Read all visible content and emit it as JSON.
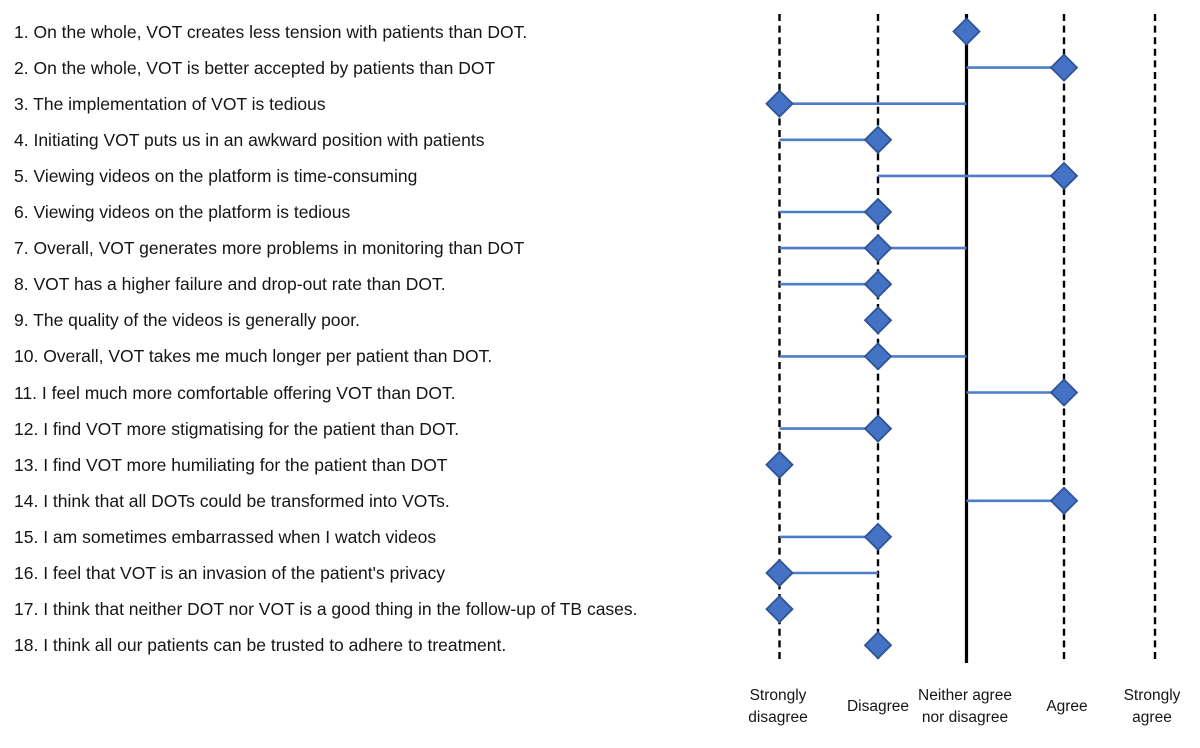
{
  "chart_data": {
    "type": "scatter",
    "marker": "diamond",
    "title": "",
    "scale": [
      "Strongly disagree",
      "Disagree",
      "Neither agree nor disagree",
      "Agree",
      "Strongly agree"
    ],
    "scale_values": [
      1,
      2,
      3,
      4,
      5
    ],
    "xlim": [
      1,
      5
    ],
    "grid": "dashed vertical lines at each scale point; solid line at neutral (3)",
    "legend": "none",
    "rows": [
      {
        "label": "1. On the whole, VOT creates less tension with patients than DOT.",
        "value": 3,
        "range": [
          3,
          3
        ]
      },
      {
        "label": "2. On the whole, VOT is better accepted by patients than DOT",
        "value": 4,
        "range": [
          3,
          4
        ]
      },
      {
        "label": "3. The implementation of VOT is tedious",
        "value": 1,
        "range": [
          1,
          3
        ]
      },
      {
        "label": "4. Initiating VOT puts us in an awkward position with patients",
        "value": 2,
        "range": [
          1,
          2
        ]
      },
      {
        "label": "5. Viewing videos on the platform is time-consuming",
        "value": 4,
        "range": [
          2,
          4
        ]
      },
      {
        "label": "6. Viewing videos on the platform is tedious",
        "value": 2,
        "range": [
          1,
          2
        ]
      },
      {
        "label": "7. Overall, VOT generates more problems in monitoring than DOT",
        "value": 2,
        "range": [
          1,
          3
        ]
      },
      {
        "label": "8. VOT has a higher failure and drop-out rate than DOT.",
        "value": 2,
        "range": [
          1,
          2
        ]
      },
      {
        "label": "9. The quality of the videos is generally poor.",
        "value": 2,
        "range": [
          2,
          2
        ]
      },
      {
        "label": "10. Overall, VOT takes me much longer per patient than DOT.",
        "value": 2,
        "range": [
          1,
          3
        ]
      },
      {
        "label": "11. I feel much more comfortable offering VOT than DOT.",
        "value": 4,
        "range": [
          3,
          4
        ]
      },
      {
        "label": "12. I find VOT more stigmatising for the patient than DOT.",
        "value": 2,
        "range": [
          1,
          2
        ]
      },
      {
        "label": "13. I find VOT more humiliating for the patient than DOT",
        "value": 1,
        "range": [
          1,
          1
        ]
      },
      {
        "label": "14. I think that all DOTs could be transformed into VOTs.",
        "value": 4,
        "range": [
          3,
          4
        ]
      },
      {
        "label": "15. I am sometimes embarrassed when I watch videos",
        "value": 2,
        "range": [
          1,
          2
        ]
      },
      {
        "label": "16. I feel that VOT is an invasion of the patient's privacy",
        "value": 1,
        "range": [
          1,
          2
        ]
      },
      {
        "label": "17. I think that neither DOT nor VOT is a good thing in the follow-up of TB cases.",
        "value": 1,
        "range": [
          1,
          1
        ]
      },
      {
        "label": "18. I think all our patients can be trusted to adhere to treatment.",
        "value": 2,
        "range": [
          2,
          2
        ]
      }
    ]
  },
  "colors": {
    "marker_fill": "#4472C4",
    "marker_border": "#2F5496",
    "whisker": "#4d7dc8",
    "axis_line": "#000000",
    "text": "#151515"
  }
}
